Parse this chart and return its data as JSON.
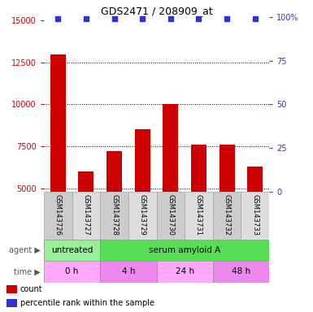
{
  "title": "GDS2471 / 208909_at",
  "samples": [
    "GSM143726",
    "GSM143727",
    "GSM143728",
    "GSM143729",
    "GSM143730",
    "GSM143731",
    "GSM143732",
    "GSM143733"
  ],
  "counts": [
    13000,
    6000,
    7200,
    8500,
    10000,
    7600,
    7600,
    6300
  ],
  "bar_color": "#cc0000",
  "dot_color": "#3333cc",
  "ylim_left": [
    4800,
    15200
  ],
  "yticks_left": [
    5000,
    7500,
    10000,
    12500,
    15000
  ],
  "yticks_right": [
    0,
    25,
    50,
    75,
    100
  ],
  "agent_groups": [
    {
      "label": "untreated",
      "start": 0,
      "end": 2,
      "color": "#99ee99"
    },
    {
      "label": "serum amyloid A",
      "start": 2,
      "end": 8,
      "color": "#55dd55"
    }
  ],
  "time_groups": [
    {
      "label": "0 h",
      "start": 0,
      "end": 2,
      "color": "#ffaaff"
    },
    {
      "label": "4 h",
      "start": 2,
      "end": 4,
      "color": "#ee88ee"
    },
    {
      "label": "24 h",
      "start": 4,
      "end": 6,
      "color": "#ffaaff"
    },
    {
      "label": "48 h",
      "start": 6,
      "end": 8,
      "color": "#ee88ee"
    }
  ],
  "legend_items": [
    {
      "color": "#cc0000",
      "label": "count"
    },
    {
      "color": "#3333cc",
      "label": "percentile rank within the sample"
    }
  ],
  "label_color_left": "#cc0000",
  "label_color_right": "#3333cc",
  "background_color": "#ffffff",
  "sample_bg_even": "#cccccc",
  "sample_bg_odd": "#dddddd"
}
